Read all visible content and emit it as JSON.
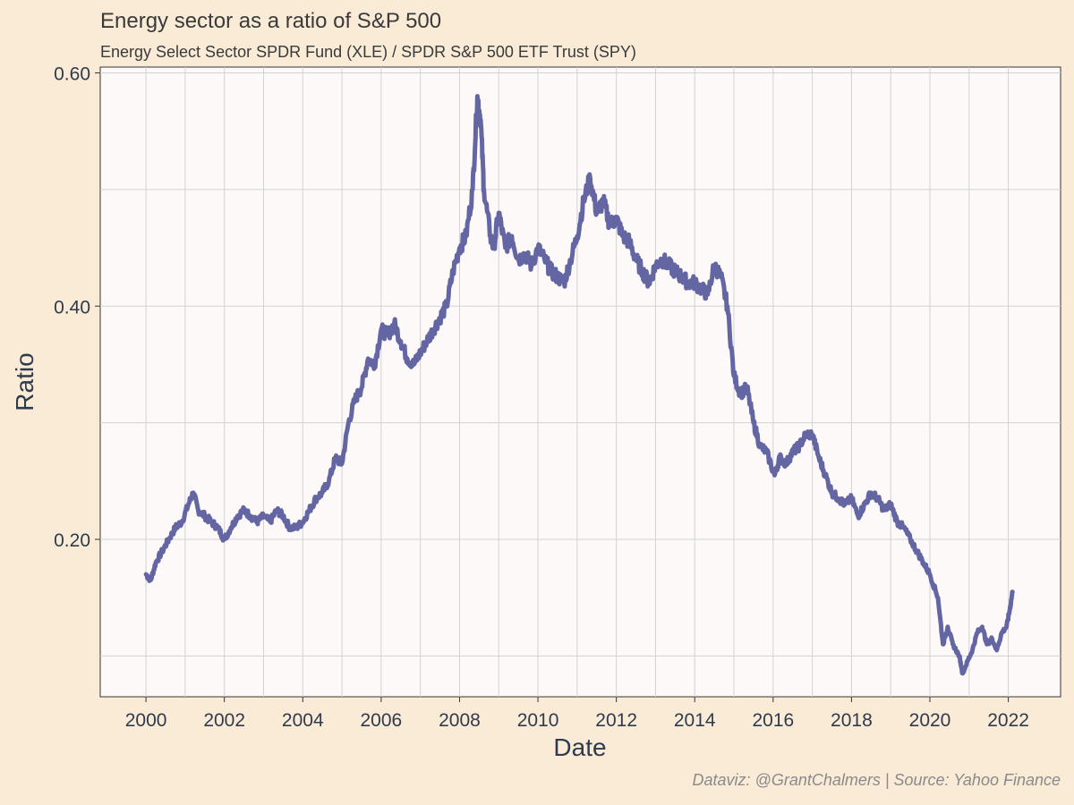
{
  "chart_data": {
    "type": "line",
    "title": "Energy sector as a ratio of S&P 500",
    "subtitle": "Energy Select Sector SPDR Fund (XLE) / SPDR S&P 500 ETF Trust (SPY)",
    "caption": "Dataviz: @GrantChalmers | Source: Yahoo Finance",
    "xlabel": "Date",
    "ylabel": "Ratio",
    "x_ticks": [
      "2000",
      "2002",
      "2004",
      "2006",
      "2008",
      "2010",
      "2012",
      "2014",
      "2016",
      "2018",
      "2020",
      "2022"
    ],
    "y_ticks": [
      "0.20",
      "0.40",
      "0.60"
    ],
    "xlim": [
      "1998-11-01",
      "2023-05-01"
    ],
    "ylim": [
      0.065,
      0.605
    ],
    "grid": true,
    "line_color": "#6366a3",
    "series": [
      {
        "x": [
          "2000-01-01",
          "2000-02-15",
          "2000-04-01",
          "2000-06-01",
          "2000-08-01",
          "2000-10-01",
          "2000-12-01",
          "2001-02-01",
          "2001-03-15",
          "2001-05-01",
          "2001-07-01",
          "2001-09-01",
          "2001-11-01",
          "2002-01-01",
          "2002-03-01",
          "2002-05-01",
          "2002-07-01",
          "2002-09-01",
          "2002-11-01",
          "2003-01-01",
          "2003-03-01",
          "2003-05-01",
          "2003-07-01",
          "2003-09-01",
          "2003-11-01",
          "2004-01-01",
          "2004-03-01",
          "2004-05-01",
          "2004-07-01",
          "2004-09-01",
          "2004-11-01",
          "2005-01-01",
          "2005-03-01",
          "2005-05-01",
          "2005-07-01",
          "2005-09-01",
          "2005-11-01",
          "2006-01-01",
          "2006-03-01",
          "2006-05-01",
          "2006-07-01",
          "2006-09-01",
          "2006-11-01",
          "2007-01-01",
          "2007-03-01",
          "2007-05-01",
          "2007-07-01",
          "2007-09-01",
          "2007-11-01",
          "2008-01-01",
          "2008-03-01",
          "2008-05-01",
          "2008-06-15",
          "2008-07-15",
          "2008-08-15",
          "2008-10-15",
          "2008-11-15",
          "2009-01-01",
          "2009-03-01",
          "2009-05-01",
          "2009-07-01",
          "2009-09-01",
          "2009-11-01",
          "2010-01-01",
          "2010-03-01",
          "2010-05-01",
          "2010-07-01",
          "2010-09-01",
          "2010-11-01",
          "2011-01-01",
          "2011-03-01",
          "2011-05-01",
          "2011-07-01",
          "2011-09-01",
          "2011-11-01",
          "2012-01-01",
          "2012-03-01",
          "2012-05-01",
          "2012-07-01",
          "2012-09-01",
          "2012-11-01",
          "2013-01-01",
          "2013-03-01",
          "2013-05-01",
          "2013-07-01",
          "2013-09-01",
          "2013-11-01",
          "2014-01-01",
          "2014-03-01",
          "2014-05-01",
          "2014-07-01",
          "2014-09-01",
          "2014-11-01",
          "2015-01-01",
          "2015-03-01",
          "2015-05-01",
          "2015-07-01",
          "2015-09-01",
          "2015-11-01",
          "2016-01-15",
          "2016-03-01",
          "2016-05-01",
          "2016-07-01",
          "2016-09-01",
          "2016-11-01",
          "2017-01-01",
          "2017-03-01",
          "2017-05-01",
          "2017-07-01",
          "2017-09-01",
          "2017-11-01",
          "2018-01-01",
          "2018-03-01",
          "2018-05-01",
          "2018-07-01",
          "2018-09-01",
          "2018-11-01",
          "2019-01-01",
          "2019-03-01",
          "2019-05-01",
          "2019-07-01",
          "2019-09-01",
          "2019-11-01",
          "2020-01-01",
          "2020-03-15",
          "2020-05-01",
          "2020-06-15",
          "2020-08-01",
          "2020-10-01",
          "2020-11-01",
          "2020-12-15",
          "2021-02-01",
          "2021-03-15",
          "2021-05-01",
          "2021-06-15",
          "2021-08-01",
          "2021-09-15",
          "2021-11-01",
          "2021-12-15",
          "2022-01-15",
          "2022-02-10"
        ],
        "y": [
          0.17,
          0.165,
          0.18,
          0.19,
          0.2,
          0.21,
          0.215,
          0.23,
          0.24,
          0.225,
          0.22,
          0.215,
          0.21,
          0.2,
          0.21,
          0.22,
          0.225,
          0.22,
          0.215,
          0.22,
          0.215,
          0.225,
          0.22,
          0.21,
          0.21,
          0.215,
          0.225,
          0.235,
          0.24,
          0.25,
          0.27,
          0.265,
          0.3,
          0.32,
          0.33,
          0.355,
          0.35,
          0.38,
          0.375,
          0.385,
          0.37,
          0.355,
          0.35,
          0.36,
          0.37,
          0.38,
          0.39,
          0.4,
          0.43,
          0.45,
          0.46,
          0.5,
          0.58,
          0.56,
          0.5,
          0.46,
          0.45,
          0.48,
          0.45,
          0.46,
          0.44,
          0.445,
          0.435,
          0.45,
          0.44,
          0.43,
          0.425,
          0.42,
          0.44,
          0.46,
          0.49,
          0.51,
          0.48,
          0.49,
          0.47,
          0.475,
          0.46,
          0.455,
          0.44,
          0.43,
          0.42,
          0.435,
          0.44,
          0.435,
          0.43,
          0.425,
          0.42,
          0.42,
          0.415,
          0.41,
          0.435,
          0.425,
          0.4,
          0.34,
          0.325,
          0.33,
          0.3,
          0.28,
          0.275,
          0.255,
          0.27,
          0.265,
          0.275,
          0.28,
          0.29,
          0.29,
          0.27,
          0.255,
          0.24,
          0.235,
          0.23,
          0.235,
          0.22,
          0.23,
          0.24,
          0.235,
          0.225,
          0.23,
          0.215,
          0.21,
          0.2,
          0.19,
          0.18,
          0.17,
          0.15,
          0.11,
          0.125,
          0.11,
          0.1,
          0.085,
          0.095,
          0.105,
          0.12,
          0.125,
          0.11,
          0.115,
          0.105,
          0.12,
          0.125,
          0.14,
          0.155
        ]
      }
    ]
  }
}
